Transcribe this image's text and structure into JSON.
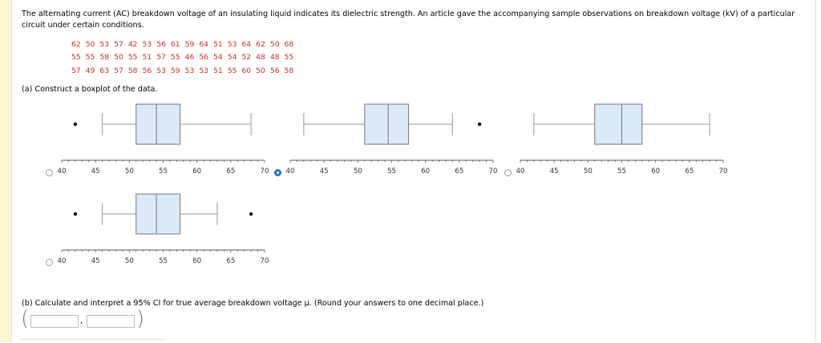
{
  "question": {
    "intro": "The alternating current (AC) breakdown voltage of an insulating liquid indicates its dielectric strength. An article gave the accompanying sample observations on breakdown voltage (kV) of a particular circuit under certain conditions.",
    "data_rows": [
      [
        "62",
        "50",
        "53",
        "57",
        "42",
        "53",
        "56",
        "61",
        "59",
        "64",
        "51",
        "53",
        "64",
        "62",
        "50",
        "68"
      ],
      [
        "55",
        "55",
        "58",
        "50",
        "55",
        "51",
        "57",
        "55",
        "46",
        "56",
        "54",
        "54",
        "52",
        "48",
        "48",
        "55"
      ],
      [
        "57",
        "49",
        "63",
        "57",
        "58",
        "56",
        "53",
        "59",
        "53",
        "53",
        "51",
        "55",
        "60",
        "50",
        "56",
        "58"
      ]
    ],
    "part_a": "(a)   Construct a boxplot of the data.",
    "part_b": "(b)   Calculate and interpret a 95% CI for true average breakdown voltage μ. (Round your answers to one decimal place.)",
    "ci_comma": ","
  },
  "boxplot_options": {
    "axis_ticks": [
      "40",
      "45",
      "50",
      "55",
      "60",
      "65",
      "70"
    ],
    "selected_index": 1,
    "options": [
      {
        "id": "option-1",
        "min": 46,
        "q1": 51,
        "median": 54,
        "q3": 57.5,
        "max": 68,
        "outliers": [
          42
        ]
      },
      {
        "id": "option-2",
        "min": 42,
        "q1": 51,
        "median": 54.5,
        "q3": 57.5,
        "max": 64,
        "outliers": [
          68
        ]
      },
      {
        "id": "option-3",
        "min": 42,
        "q1": 51,
        "median": 55,
        "q3": 58,
        "max": 68,
        "outliers": []
      },
      {
        "id": "option-4",
        "min": 46,
        "q1": 51,
        "median": 54,
        "q3": 57.5,
        "max": 63,
        "outliers": [
          42,
          68
        ]
      }
    ]
  }
}
